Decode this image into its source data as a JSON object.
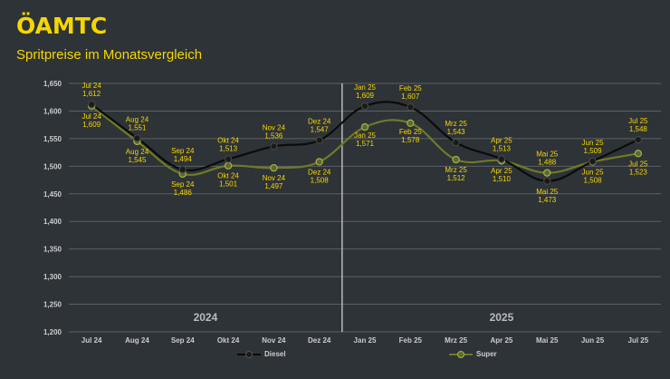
{
  "header": {
    "logo_text": "ÖAMTC",
    "subtitle": "Spritpreise im Monatsvergleich"
  },
  "colors": {
    "background": "#2e3338",
    "accent": "#f6d600",
    "diesel": "#0b0b0b",
    "super": "#6f7a26",
    "grid": "#5c6166"
  },
  "chart_data": {
    "type": "line",
    "title": "Spritpreise im Monatsvergleich",
    "xlabel": "",
    "ylabel": "",
    "ylim": [
      1.2,
      1.65
    ],
    "yticks": [
      "1,650",
      "1,600",
      "1,550",
      "1,500",
      "1,450",
      "1,400",
      "1,350",
      "1,300",
      "1,250",
      "1,200"
    ],
    "ytick_values": [
      1.65,
      1.6,
      1.55,
      1.5,
      1.45,
      1.4,
      1.35,
      1.3,
      1.25,
      1.2
    ],
    "grid": true,
    "categories": [
      "Jul 24",
      "Aug 24",
      "Sep 24",
      "Okt 24",
      "Nov 24",
      "Dez 24",
      "Jan 25",
      "Feb 25",
      "Mrz 25",
      "Apr 25",
      "Mai 25",
      "Jun 25",
      "Jul 25"
    ],
    "year_labels": [
      "2024",
      "2025"
    ],
    "series": [
      {
        "name": "Diesel",
        "values": [
          1.612,
          1.551,
          1.494,
          1.513,
          1.536,
          1.547,
          1.609,
          1.607,
          1.543,
          1.513,
          1.473,
          1.509,
          1.548
        ],
        "labels": [
          "1,612",
          "1,551",
          "1,494",
          "1,513",
          "1,536",
          "1,547",
          "1,609",
          "1,607",
          "1,543",
          "1,513",
          "1,473",
          "1,509",
          "1,548"
        ]
      },
      {
        "name": "Super",
        "values": [
          1.609,
          1.545,
          1.486,
          1.501,
          1.497,
          1.508,
          1.571,
          1.578,
          1.512,
          1.51,
          1.488,
          1.508,
          1.523
        ],
        "labels": [
          "1,609",
          "1,545",
          "1,486",
          "1,501",
          "1,497",
          "1,508",
          "1,571",
          "1,578",
          "1,512",
          "1,510",
          "1,488",
          "1,508",
          "1,523"
        ]
      }
    ],
    "legend": [
      "Diesel",
      "Super"
    ],
    "legend_position": "bottom"
  }
}
